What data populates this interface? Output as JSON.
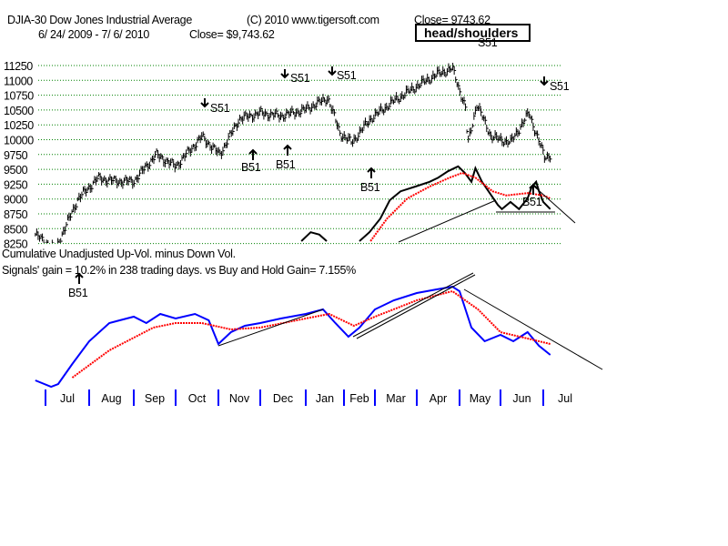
{
  "header": {
    "ticker_title": "DJIA-30  Dow Jones Industrial Average",
    "copyright": "(C) 2010 www.tigersoft.com",
    "close_label": "Close=  9743.62",
    "date_range": "6/ 24/ 2009 -  7/ 6/ 2010",
    "close_dollar": "Close= $9,743.62"
  },
  "annotation_box": "head/shoulders",
  "indicator": {
    "title": "Cumulative Unadjusted Up-Vol. minus Down Vol.",
    "gain_text": "Signals' gain = 10.2%  in 238 trading days. vs Buy and Hold Gain= 7.155%"
  },
  "signals": {
    "s1": "S51",
    "s2": "S51",
    "s3": "S51",
    "s4": "S51",
    "s5": "S51",
    "b1": "B51",
    "b2": "B51",
    "b3": "B51",
    "b4": "B51",
    "b5": "B51"
  },
  "colors": {
    "price": "#000000",
    "indicator": "#0000ff",
    "moving_average": "#ff0000",
    "grid": "#008000",
    "month_tick": "#0000ff"
  },
  "chart_data": [
    {
      "type": "bar",
      "subtype": "ohlc-price",
      "title": "DJIA-30 Dow Jones Industrial Average",
      "y_ticks": [
        "11250",
        "11000",
        "10750",
        "10500",
        "10250",
        "10000",
        "9750",
        "9500",
        "9250",
        "9000",
        "8750",
        "8500",
        "8250"
      ],
      "ylim": [
        8000,
        11350
      ],
      "grid": true,
      "x_labels": [
        "Jul",
        "Aug",
        "Sep",
        "Oct",
        "Nov",
        "Dec",
        "Jan",
        "Feb",
        "Mar",
        "Apr",
        "May",
        "Jun",
        "Jul"
      ],
      "close_path": [
        [
          "2009-06-24",
          8400
        ],
        [
          "2009-07-08",
          8150
        ],
        [
          "2009-07-24",
          9000
        ],
        [
          "2009-08-07",
          9350
        ],
        [
          "2009-08-20",
          9300
        ],
        [
          "2009-09-01",
          9300
        ],
        [
          "2009-09-17",
          9750
        ],
        [
          "2009-10-01",
          9550
        ],
        [
          "2009-10-20",
          10050
        ],
        [
          "2009-11-02",
          9750
        ],
        [
          "2009-11-16",
          10350
        ],
        [
          "2009-12-01",
          10450
        ],
        [
          "2009-12-15",
          10400
        ],
        [
          "2009-12-31",
          10500
        ],
        [
          "2010-01-19",
          10700
        ],
        [
          "2010-01-29",
          10100
        ],
        [
          "2010-02-08",
          9950
        ],
        [
          "2010-02-25",
          10350
        ],
        [
          "2010-03-15",
          10650
        ],
        [
          "2010-04-01",
          10900
        ],
        [
          "2010-04-15",
          11100
        ],
        [
          "2010-04-26",
          11200
        ],
        [
          "2010-05-06",
          10500
        ],
        [
          "2010-05-07",
          9900
        ],
        [
          "2010-05-14",
          10600
        ],
        [
          "2010-05-25",
          10050
        ],
        [
          "2010-06-08",
          9950
        ],
        [
          "2010-06-21",
          10450
        ],
        [
          "2010-07-02",
          9700
        ],
        [
          "2010-07-06",
          9743.62
        ]
      ],
      "overlay_line": [
        [
          [
            "2009-12-29",
            8290
          ],
          [
            "2010-01-05",
            8440
          ],
          [
            "2010-01-12",
            8400
          ],
          [
            "2010-01-18",
            8290
          ]
        ],
        [
          [
            "2010-02-15",
            8290
          ],
          [
            "2010-02-24",
            8440
          ],
          [
            "2010-03-05",
            8670
          ],
          [
            "2010-03-12",
            8980
          ],
          [
            "2010-03-20",
            9130
          ],
          [
            "2010-03-31",
            9210
          ],
          [
            "2010-04-10",
            9290
          ],
          [
            "2010-04-16",
            9360
          ],
          [
            "2010-04-23",
            9470
          ],
          [
            "2010-04-30",
            9550
          ],
          [
            "2010-05-05",
            9440
          ],
          [
            "2010-05-10",
            9290
          ],
          [
            "2010-05-13",
            9520
          ],
          [
            "2010-05-18",
            9290
          ],
          [
            "2010-05-30",
            8900
          ],
          [
            "2010-06-02",
            8830
          ],
          [
            "2010-06-08",
            8950
          ],
          [
            "2010-06-14",
            8830
          ],
          [
            "2010-06-20",
            9010
          ],
          [
            "2010-06-23",
            9210
          ],
          [
            "2010-06-26",
            9290
          ],
          [
            "2010-06-28",
            9130
          ],
          [
            "2010-07-01",
            8950
          ],
          [
            "2010-07-06",
            8830
          ]
        ]
      ],
      "overlay_ma": [
        [
          "2010-02-25",
          8290
        ],
        [
          "2010-03-10",
          8670
        ],
        [
          "2010-03-25",
          9010
        ],
        [
          "2010-04-10",
          9210
        ],
        [
          "2010-04-24",
          9360
        ],
        [
          "2010-05-03",
          9440
        ],
        [
          "2010-05-13",
          9360
        ],
        [
          "2010-05-26",
          9130
        ],
        [
          "2010-06-05",
          9060
        ],
        [
          "2010-06-20",
          9100
        ],
        [
          "2010-07-01",
          9060
        ],
        [
          "2010-07-06",
          9010
        ]
      ]
    },
    {
      "type": "line",
      "title": "Cumulative Unadjusted Up-Vol. minus Down Vol.",
      "series": [
        {
          "color": "#0000ff",
          "points": [
            [
              "2009-06-24",
              12
            ],
            [
              "2009-07-05",
              5
            ],
            [
              "2009-07-10",
              8
            ],
            [
              "2009-07-20",
              30
            ],
            [
              "2009-08-01",
              55
            ],
            [
              "2009-08-15",
              75
            ],
            [
              "2009-09-01",
              82
            ],
            [
              "2009-09-10",
              75
            ],
            [
              "2009-09-20",
              85
            ],
            [
              "2009-10-01",
              80
            ],
            [
              "2009-10-15",
              85
            ],
            [
              "2009-10-25",
              78
            ],
            [
              "2009-11-01",
              52
            ],
            [
              "2009-11-10",
              65
            ],
            [
              "2009-11-20",
              72
            ],
            [
              "2009-12-01",
              75
            ],
            [
              "2009-12-15",
              80
            ],
            [
              "2010-01-01",
              85
            ],
            [
              "2010-01-15",
              90
            ],
            [
              "2010-01-25",
              75
            ],
            [
              "2010-02-05",
              60
            ],
            [
              "2010-02-15",
              70
            ],
            [
              "2010-03-01",
              90
            ],
            [
              "2010-03-15",
              100
            ],
            [
              "2010-04-01",
              108
            ],
            [
              "2010-04-15",
              112
            ],
            [
              "2010-04-26",
              115
            ],
            [
              "2010-05-01",
              110
            ],
            [
              "2010-05-10",
              70
            ],
            [
              "2010-05-20",
              55
            ],
            [
              "2010-06-01",
              62
            ],
            [
              "2010-06-10",
              55
            ],
            [
              "2010-06-20",
              65
            ],
            [
              "2010-06-28",
              50
            ],
            [
              "2010-07-06",
              40
            ]
          ]
        },
        {
          "color": "#ff0000",
          "points": [
            [
              "2009-07-20",
              15
            ],
            [
              "2009-08-15",
              45
            ],
            [
              "2009-09-15",
              70
            ],
            [
              "2009-10-01",
              75
            ],
            [
              "2009-10-20",
              75
            ],
            [
              "2009-11-10",
              68
            ],
            [
              "2009-12-01",
              70
            ],
            [
              "2010-01-01",
              80
            ],
            [
              "2010-01-20",
              85
            ],
            [
              "2010-02-10",
              72
            ],
            [
              "2010-03-01",
              82
            ],
            [
              "2010-04-01",
              100
            ],
            [
              "2010-04-26",
              110
            ],
            [
              "2010-05-15",
              90
            ],
            [
              "2010-06-01",
              65
            ],
            [
              "2010-06-20",
              58
            ],
            [
              "2010-07-06",
              52
            ]
          ]
        }
      ]
    }
  ]
}
